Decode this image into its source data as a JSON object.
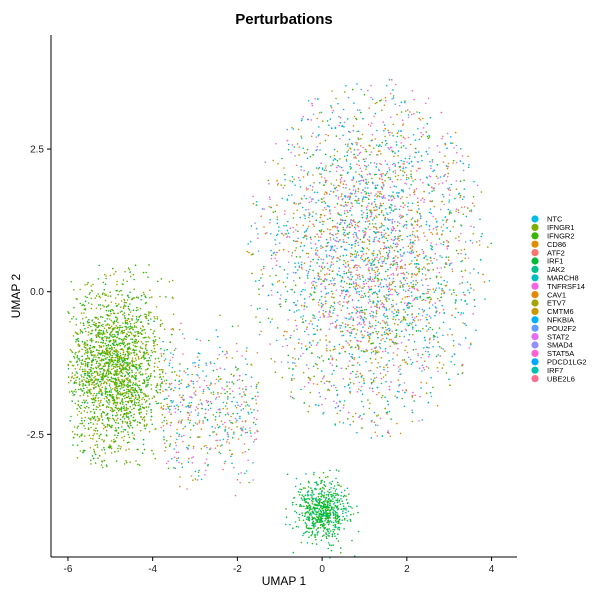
{
  "chart_data": {
    "type": "scatter",
    "title": "Perturbations",
    "xlabel": "UMAP 1",
    "ylabel": "UMAP 2",
    "xlim": [
      -6.4,
      4.6
    ],
    "ylim": [
      -4.65,
      4.5
    ],
    "xticks": [
      -6,
      -4,
      -2,
      0,
      2,
      4
    ],
    "yticks": [
      -2.5,
      0.0,
      2.5
    ],
    "ytick_labels": [
      "-2.5",
      "0.0",
      "2.5"
    ],
    "grid": false,
    "legend_position": "right",
    "clusters": [
      {
        "name": "main",
        "center": [
          1.1,
          0.5
        ],
        "spread": [
          1.7,
          1.9
        ],
        "mix": "all"
      },
      {
        "name": "left",
        "center": [
          -4.9,
          -1.4
        ],
        "spread": [
          0.55,
          0.75
        ],
        "mix": "green"
      },
      {
        "name": "bottom",
        "center": [
          0.0,
          -3.85
        ],
        "spread": [
          0.3,
          0.2
        ],
        "mix": "green2"
      }
    ],
    "series": [
      {
        "name": "NTC",
        "color": "#00bbe3"
      },
      {
        "name": "IFNGR1",
        "color": "#7cae00"
      },
      {
        "name": "IFNGR2",
        "color": "#39b600"
      },
      {
        "name": "CD86",
        "color": "#de8c00"
      },
      {
        "name": "ATF2",
        "color": "#f8766d"
      },
      {
        "name": "IRF1",
        "color": "#00ba38"
      },
      {
        "name": "JAK2",
        "color": "#00c08b"
      },
      {
        "name": "MARCH8",
        "color": "#00bfc4"
      },
      {
        "name": "TNFRSF14",
        "color": "#f564e3"
      },
      {
        "name": "CAV1",
        "color": "#e58700"
      },
      {
        "name": "ETV7",
        "color": "#a3a500"
      },
      {
        "name": "CMTM6",
        "color": "#c99800"
      },
      {
        "name": "NFKBIA",
        "color": "#00b0f6"
      },
      {
        "name": "POU2F2",
        "color": "#619cff"
      },
      {
        "name": "STAT2",
        "color": "#e76bf3"
      },
      {
        "name": "SMAD4",
        "color": "#9590ff"
      },
      {
        "name": "STAT5A",
        "color": "#fd61d1"
      },
      {
        "name": "PDCD1LG2",
        "color": "#00a9ff"
      },
      {
        "name": "IRF7",
        "color": "#00c0af"
      },
      {
        "name": "UBE2L6",
        "color": "#ff6c91"
      }
    ]
  }
}
